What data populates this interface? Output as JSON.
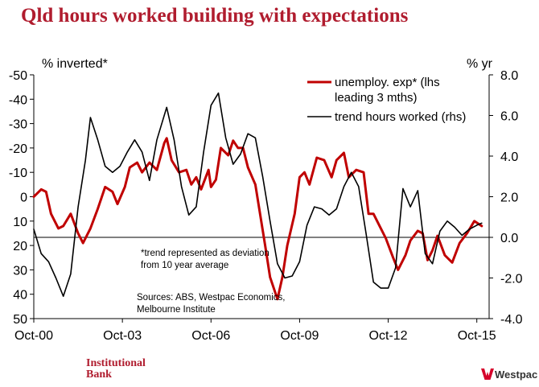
{
  "title": "Qld hours worked building with expectations",
  "colors": {
    "title": "#b01c2e",
    "series_red": "#c00000",
    "series_black": "#000000",
    "brand": "#d5002b"
  },
  "logos": {
    "institutional_bank": [
      "Institutional",
      "Bank"
    ],
    "westpac": "Westpac"
  },
  "chart_data": {
    "type": "line",
    "left_axis": {
      "label": "% inverted*",
      "min": -50,
      "max": 50,
      "inverted": true,
      "ticks": [
        "-50",
        "-40",
        "-30",
        "-20",
        "-10",
        "0",
        "10",
        "20",
        "30",
        "40",
        "50"
      ]
    },
    "right_axis": {
      "label": "% yr",
      "min": -4.0,
      "max": 8.0,
      "ticks": [
        "8.0",
        "6.0",
        "4.0",
        "2.0",
        "0.0",
        "-2.0",
        "-4.0"
      ]
    },
    "x_axis": {
      "ticks": [
        "Oct-00",
        "Oct-03",
        "Oct-06",
        "Oct-09",
        "Oct-12",
        "Oct-15"
      ]
    },
    "legend": {
      "position": "top-right",
      "entries": [
        {
          "lines": [
            "unemploy. exp* (lhs",
            "leading 3 mths)"
          ],
          "series": 0
        },
        {
          "lines": [
            "trend hours worked (rhs)"
          ],
          "series": 1
        }
      ]
    },
    "annotations": {
      "footnote": [
        "*trend represented as deviation",
        "from 10 year average"
      ],
      "source": [
        "Sources: ABS, Westpac Economics,",
        "Melbourne Institute"
      ]
    },
    "series": [
      {
        "name": "unemploy. exp* (lhs leading 3 mths)",
        "axis": "left",
        "color": "#c00000",
        "points": [
          [
            "Oct-00",
            0
          ],
          [
            "Jan-01",
            -3
          ],
          [
            "Mar-01",
            -2
          ],
          [
            "May-01",
            7
          ],
          [
            "Aug-01",
            13
          ],
          [
            "Oct-01",
            12
          ],
          [
            "Jan-02",
            7
          ],
          [
            "Apr-02",
            15
          ],
          [
            "Jun-02",
            19
          ],
          [
            "Sep-02",
            13
          ],
          [
            "Dec-02",
            5
          ],
          [
            "Mar-03",
            -4
          ],
          [
            "Jun-03",
            -2
          ],
          [
            "Aug-03",
            3
          ],
          [
            "Nov-03",
            -4
          ],
          [
            "Jan-04",
            -12
          ],
          [
            "Apr-04",
            -14
          ],
          [
            "Jun-04",
            -10
          ],
          [
            "Sep-04",
            -14
          ],
          [
            "Dec-04",
            -11
          ],
          [
            "Mar-05",
            -22
          ],
          [
            "Apr-05",
            -24
          ],
          [
            "Jun-05",
            -15
          ],
          [
            "Sep-05",
            -10
          ],
          [
            "Dec-05",
            -11
          ],
          [
            "Feb-06",
            -5
          ],
          [
            "Apr-06",
            -8
          ],
          [
            "Jun-06",
            -3
          ],
          [
            "Sep-06",
            -11
          ],
          [
            "Oct-06",
            -4
          ],
          [
            "Dec-06",
            -7
          ],
          [
            "Feb-07",
            -20
          ],
          [
            "May-07",
            -17
          ],
          [
            "Jul-07",
            -23
          ],
          [
            "Sep-07",
            -20
          ],
          [
            "Nov-07",
            -20
          ],
          [
            "Jan-08",
            -12
          ],
          [
            "Apr-08",
            -5
          ],
          [
            "Aug-08",
            20
          ],
          [
            "Oct-08",
            33
          ],
          [
            "Jan-09",
            42
          ],
          [
            "Mar-09",
            33
          ],
          [
            "May-09",
            20
          ],
          [
            "Aug-09",
            7
          ],
          [
            "Oct-09",
            -8
          ],
          [
            "Dec-09",
            -10
          ],
          [
            "Feb-10",
            -5
          ],
          [
            "May-10",
            -16
          ],
          [
            "Aug-10",
            -15
          ],
          [
            "Nov-10",
            -8
          ],
          [
            "Jan-11",
            -15
          ],
          [
            "Apr-11",
            -18
          ],
          [
            "Jun-11",
            -8
          ],
          [
            "Sep-11",
            -11
          ],
          [
            "Dec-11",
            -10
          ],
          [
            "Feb-12",
            7
          ],
          [
            "Apr-12",
            7
          ],
          [
            "Jul-12",
            13
          ],
          [
            "Sep-12",
            17
          ],
          [
            "Dec-12",
            25
          ],
          [
            "Feb-13",
            30
          ],
          [
            "May-13",
            24
          ],
          [
            "Jul-13",
            18
          ],
          [
            "Oct-13",
            14
          ],
          [
            "Dec-13",
            15
          ],
          [
            "Feb-14",
            26
          ],
          [
            "Apr-14",
            22
          ],
          [
            "Jun-14",
            16
          ],
          [
            "Sep-14",
            24
          ],
          [
            "Dec-14",
            27
          ],
          [
            "Mar-15",
            19
          ],
          [
            "Jun-15",
            15
          ],
          [
            "Sep-15",
            10
          ],
          [
            "Dec-15",
            12
          ]
        ]
      },
      {
        "name": "trend hours worked (rhs)",
        "axis": "right",
        "color": "#000000",
        "points": [
          [
            "Oct-00",
            0.4
          ],
          [
            "Jan-01",
            -0.8
          ],
          [
            "Apr-01",
            -1.2
          ],
          [
            "Jul-01",
            -2.0
          ],
          [
            "Oct-01",
            -2.9
          ],
          [
            "Jan-02",
            -1.8
          ],
          [
            "Apr-02",
            1.5
          ],
          [
            "Jul-02",
            3.8
          ],
          [
            "Sep-02",
            5.9
          ],
          [
            "Dec-02",
            4.8
          ],
          [
            "Mar-03",
            3.5
          ],
          [
            "Jun-03",
            3.2
          ],
          [
            "Sep-03",
            3.5
          ],
          [
            "Dec-03",
            4.2
          ],
          [
            "Mar-04",
            4.8
          ],
          [
            "Jun-04",
            4.2
          ],
          [
            "Sep-04",
            2.8
          ],
          [
            "Dec-04",
            4.8
          ],
          [
            "Apr-05",
            6.4
          ],
          [
            "Jul-05",
            4.8
          ],
          [
            "Oct-05",
            2.5
          ],
          [
            "Jan-06",
            1.1
          ],
          [
            "Apr-06",
            1.5
          ],
          [
            "Jul-06",
            4.2
          ],
          [
            "Oct-06",
            6.5
          ],
          [
            "Jan-07",
            7.1
          ],
          [
            "Apr-07",
            4.9
          ],
          [
            "Jul-07",
            3.6
          ],
          [
            "Oct-07",
            4.1
          ],
          [
            "Jan-08",
            5.1
          ],
          [
            "Apr-08",
            4.9
          ],
          [
            "Jul-08",
            3.0
          ],
          [
            "Oct-08",
            0.8
          ],
          [
            "Jan-09",
            -1.3
          ],
          [
            "Apr-09",
            -2.0
          ],
          [
            "Jul-09",
            -1.9
          ],
          [
            "Oct-09",
            -1.2
          ],
          [
            "Jan-10",
            0.6
          ],
          [
            "Apr-10",
            1.5
          ],
          [
            "Jul-10",
            1.4
          ],
          [
            "Oct-10",
            1.1
          ],
          [
            "Jan-11",
            1.4
          ],
          [
            "Apr-11",
            2.5
          ],
          [
            "Jul-11",
            3.2
          ],
          [
            "Oct-11",
            2.5
          ],
          [
            "Jan-12",
            0.2
          ],
          [
            "Apr-12",
            -2.2
          ],
          [
            "Jul-12",
            -2.5
          ],
          [
            "Oct-12",
            -2.5
          ],
          [
            "Jan-13",
            -1.5
          ],
          [
            "Apr-13",
            2.4
          ],
          [
            "Jul-13",
            1.5
          ],
          [
            "Oct-13",
            2.3
          ],
          [
            "Jan-14",
            -0.8
          ],
          [
            "Apr-14",
            -1.3
          ],
          [
            "Jul-14",
            0.3
          ],
          [
            "Oct-14",
            0.8
          ],
          [
            "Jan-15",
            0.5
          ],
          [
            "Apr-15",
            0.1
          ],
          [
            "Jul-15",
            0.4
          ],
          [
            "Oct-15",
            0.6
          ],
          [
            "Dec-15",
            0.7
          ]
        ]
      }
    ]
  }
}
